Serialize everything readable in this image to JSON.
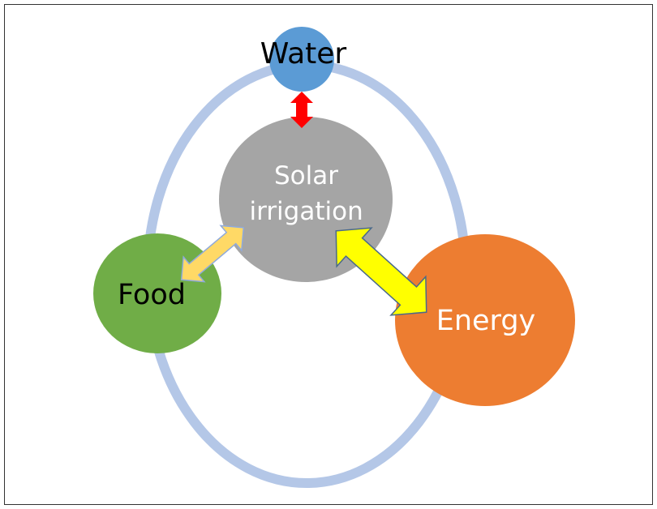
{
  "nodes": [
    {
      "label": "Water"
    },
    {
      "label": "Solar irrigation"
    },
    {
      "label": "Food"
    },
    {
      "label": "Energy"
    }
  ]
}
